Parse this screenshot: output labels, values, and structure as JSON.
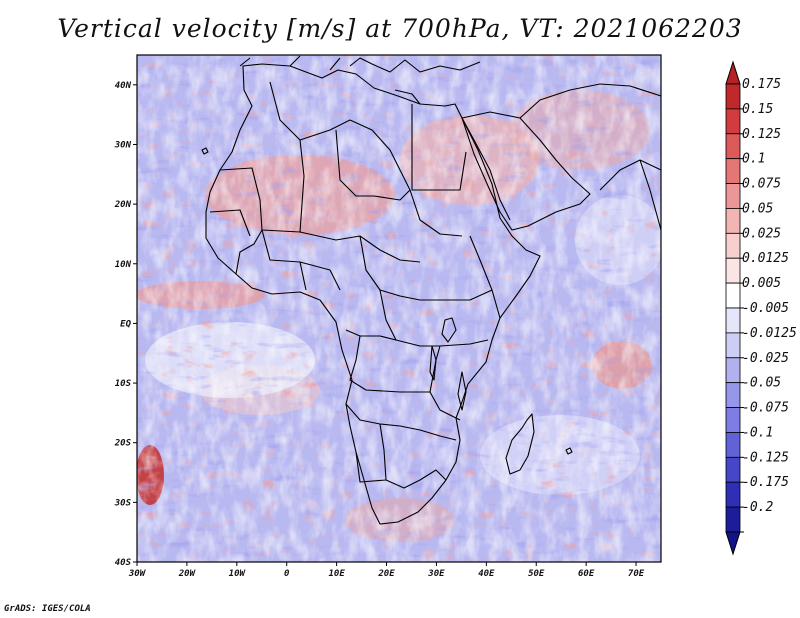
{
  "title": "Vertical velocity [m/s] at 700hPa, VT: 2021062203",
  "credit": "GrADS: IGES/COLA",
  "map": {
    "lon_range": [
      -30,
      75
    ],
    "lat_range": [
      -40,
      45
    ],
    "lat_ticks": [
      {
        "label": "40N",
        "value": 40
      },
      {
        "label": "30N",
        "value": 30
      },
      {
        "label": "20N",
        "value": 20
      },
      {
        "label": "10N",
        "value": 10
      },
      {
        "label": "EQ",
        "value": 0
      },
      {
        "label": "10S",
        "value": -10
      },
      {
        "label": "20S",
        "value": -20
      },
      {
        "label": "30S",
        "value": -30
      },
      {
        "label": "40S",
        "value": -40
      }
    ],
    "lon_ticks": [
      {
        "label": "30W",
        "value": -30
      },
      {
        "label": "20W",
        "value": -20
      },
      {
        "label": "10W",
        "value": -10
      },
      {
        "label": "0",
        "value": 0
      },
      {
        "label": "10E",
        "value": 10
      },
      {
        "label": "20E",
        "value": 20
      },
      {
        "label": "30E",
        "value": 30
      },
      {
        "label": "40E",
        "value": 40
      },
      {
        "label": "50E",
        "value": 50
      },
      {
        "label": "60E",
        "value": 60
      },
      {
        "label": "70E",
        "value": 70
      }
    ]
  },
  "colorbar": {
    "levels": [
      {
        "label": "0.175",
        "color": "#c0292c"
      },
      {
        "label": "0.15",
        "color": "#d33c3f"
      },
      {
        "label": "0.125",
        "color": "#dc5a5a"
      },
      {
        "label": "0.1",
        "color": "#e47676"
      },
      {
        "label": "0.075",
        "color": "#ec9797"
      },
      {
        "label": "0.05",
        "color": "#f2b5b4"
      },
      {
        "label": "0.025",
        "color": "#f6cfce"
      },
      {
        "label": "0.0125",
        "color": "#fae5e4"
      },
      {
        "label": "0.005",
        "color": "#ffffff"
      },
      {
        "label": "-0.005",
        "color": "#e6e6fb"
      },
      {
        "label": "-0.0125",
        "color": "#cdcdf6"
      },
      {
        "label": "-0.025",
        "color": "#b1b1f0"
      },
      {
        "label": "-0.05",
        "color": "#9797ea"
      },
      {
        "label": "-0.075",
        "color": "#7d7de3"
      },
      {
        "label": "-0.1",
        "color": "#6262d8"
      },
      {
        "label": "-0.125",
        "color": "#4646c9"
      },
      {
        "label": "-0.175",
        "color": "#2e2eb6"
      },
      {
        "label": "-0.2",
        "color": "#1d1d99"
      }
    ],
    "top_color": "#b52226",
    "bottom_color": "#13138a"
  }
}
